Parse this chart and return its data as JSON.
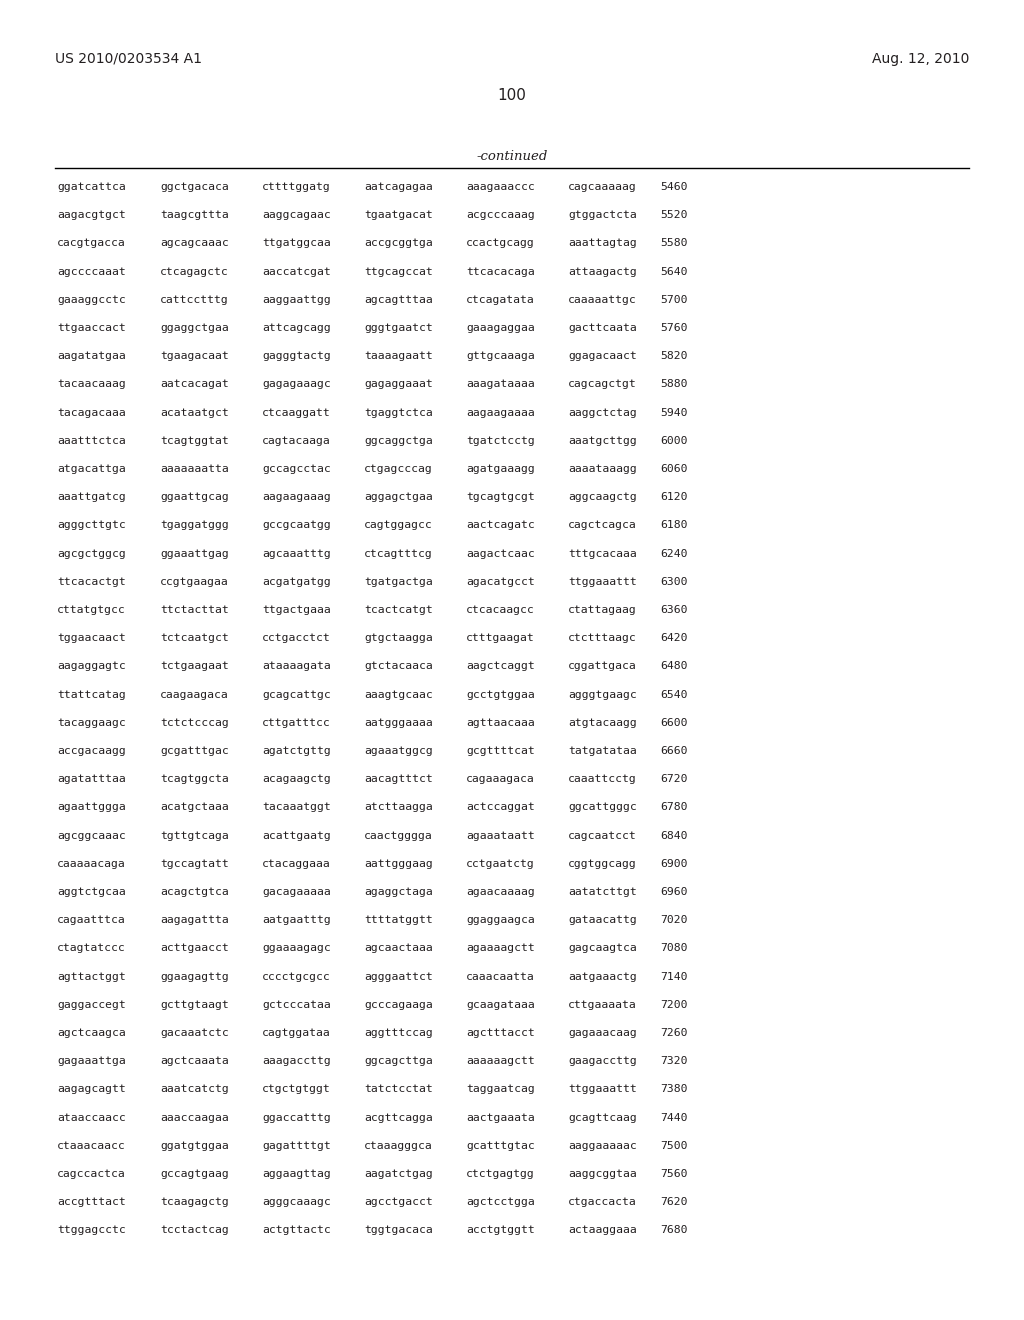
{
  "header_left": "US 2010/0203534 A1",
  "header_right": "Aug. 12, 2010",
  "page_number": "100",
  "continued_label": "-continued",
  "background_color": "#ffffff",
  "text_color": "#231f20",
  "sequence_lines": [
    [
      "ggatcattca",
      "ggctgacaca",
      "cttttggatg",
      "aatcagagaa",
      "aaagaaaccc",
      "cagcaaaaag",
      "5460"
    ],
    [
      "aagacgtgct",
      "taagcgttta",
      "aaggcagaac",
      "tgaatgacat",
      "acgcccaaag",
      "gtggactcta",
      "5520"
    ],
    [
      "cacgtgacca",
      "agcagcaaac",
      "ttgatggcaa",
      "accgcggtga",
      "ccactgcagg",
      "aaattagtag",
      "5580"
    ],
    [
      "agccccaaat",
      "ctcagagctc",
      "aaccatcgat",
      "ttgcagccat",
      "ttcacacaga",
      "attaagactg",
      "5640"
    ],
    [
      "gaaaggcctc",
      "cattcctttg",
      "aaggaattgg",
      "agcagtttaa",
      "ctcagatata",
      "caaaaattgc",
      "5700"
    ],
    [
      "ttgaaccact",
      "ggaggctgaa",
      "attcagcagg",
      "gggtgaatct",
      "gaaagaggaa",
      "gacttcaata",
      "5760"
    ],
    [
      "aagatatgaa",
      "tgaagacaat",
      "gagggtactg",
      "taaaagaatt",
      "gttgcaaaga",
      "ggagacaact",
      "5820"
    ],
    [
      "tacaacaaag",
      "aatcacagat",
      "gagagaaagc",
      "gagaggaaat",
      "aaagataaaa",
      "cagcagctgt",
      "5880"
    ],
    [
      "tacagacaaa",
      "acataatgct",
      "ctcaaggatt",
      "tgaggtctca",
      "aagaagaaaa",
      "aaggctctag",
      "5940"
    ],
    [
      "aaatttctca",
      "tcagtggtat",
      "cagtacaaga",
      "ggcaggctga",
      "tgatctcctg",
      "aaatgcttgg",
      "6000"
    ],
    [
      "atgacattga",
      "aaaaaaatta",
      "gccagcctac",
      "ctgagcccag",
      "agatgaaagg",
      "aaaataaagg",
      "6060"
    ],
    [
      "aaattgatcg",
      "ggaattgcag",
      "aagaagaaag",
      "aggagctgaa",
      "tgcagtgcgt",
      "aggcaagctg",
      "6120"
    ],
    [
      "agggcttgtc",
      "tgaggatggg",
      "gccgcaatgg",
      "cagtggagcc",
      "aactcagatc",
      "cagctcagca",
      "6180"
    ],
    [
      "agcgctggcg",
      "ggaaattgag",
      "agcaaatttg",
      "ctcagtttcg",
      "aagactcaac",
      "tttgcacaaa",
      "6240"
    ],
    [
      "ttcacactgt",
      "ccgtgaagaa",
      "acgatgatgg",
      "tgatgactga",
      "agacatgcct",
      "ttggaaattt",
      "6300"
    ],
    [
      "cttatgtgcc",
      "ttctacttat",
      "ttgactgaaa",
      "tcactcatgt",
      "ctcacaagcc",
      "ctattagaag",
      "6360"
    ],
    [
      "tggaacaact",
      "tctcaatgct",
      "cctgacctct",
      "gtgctaagga",
      "ctttgaagat",
      "ctctttaagc",
      "6420"
    ],
    [
      "aagaggagtc",
      "tctgaagaat",
      "ataaaagata",
      "gtctacaaca",
      "aagctcaggt",
      "cggattgaca",
      "6480"
    ],
    [
      "ttattcatag",
      "caagaagaca",
      "gcagcattgc",
      "aaagtgcaac",
      "gcctgtggaa",
      "agggtgaagc",
      "6540"
    ],
    [
      "tacaggaagc",
      "tctctcccag",
      "cttgatttcc",
      "aatgggaaaa",
      "agttaacaaa",
      "atgtacaagg",
      "6600"
    ],
    [
      "accgacaagg",
      "gcgatttgac",
      "agatctgttg",
      "agaaatggcg",
      "gcgttttcat",
      "tatgatataa",
      "6660"
    ],
    [
      "agatatttaa",
      "tcagtggcta",
      "acagaagctg",
      "aacagtttct",
      "cagaaagaca",
      "caaattcctg",
      "6720"
    ],
    [
      "agaattggga",
      "acatgctaaa",
      "tacaaatggt",
      "atcttaagga",
      "actccaggat",
      "ggcattgggc",
      "6780"
    ],
    [
      "agcggcaaac",
      "tgttgtcaga",
      "acattgaatg",
      "caactgggga",
      "agaaataatt",
      "cagcaatcct",
      "6840"
    ],
    [
      "caaaaacaga",
      "tgccagtatt",
      "ctacaggaaa",
      "aattgggaag",
      "cctgaatctg",
      "cggtggcagg",
      "6900"
    ],
    [
      "aggtctgcaa",
      "acagctgtca",
      "gacagaaaaa",
      "agaggctaga",
      "agaacaaaag",
      "aatatcttgt",
      "6960"
    ],
    [
      "cagaatttca",
      "aagagattta",
      "aatgaatttg",
      "ttttatggtt",
      "ggaggaagca",
      "gataacattg",
      "7020"
    ],
    [
      "ctagtatccc",
      "acttgaacct",
      "ggaaaagagc",
      "agcaactaaa",
      "agaaaagctt",
      "gagcaagtca",
      "7080"
    ],
    [
      "agttactggt",
      "ggaagagttg",
      "cccctgcgcc",
      "agggaattct",
      "caaacaatta",
      "aatgaaactg",
      "7140"
    ],
    [
      "gaggaccegt",
      "gcttgtaagt",
      "gctcccataa",
      "gcccagaaga",
      "gcaagataaa",
      "cttgaaaata",
      "7200"
    ],
    [
      "agctcaagca",
      "gacaaatctc",
      "cagtggataa",
      "aggtttccag",
      "agctttacct",
      "gagaaacaag",
      "7260"
    ],
    [
      "gagaaattga",
      "agctcaaata",
      "aaagaccttg",
      "ggcagcttga",
      "aaaaaagctt",
      "gaagaccttg",
      "7320"
    ],
    [
      "aagagcagtt",
      "aaatcatctg",
      "ctgctgtggt",
      "tatctcctat",
      "taggaatcag",
      "ttggaaattt",
      "7380"
    ],
    [
      "ataaccaacc",
      "aaaccaagaa",
      "ggaccatttg",
      "acgttcagga",
      "aactgaaata",
      "gcagttcaag",
      "7440"
    ],
    [
      "ctaaacaacc",
      "ggatgtggaa",
      "gagattttgt",
      "ctaaagggca",
      "gcatttgtac",
      "aaggaaaaac",
      "7500"
    ],
    [
      "cagccactca",
      "gccagtgaag",
      "aggaagttag",
      "aagatctgag",
      "ctctgagtgg",
      "aaggcggtaa",
      "7560"
    ],
    [
      "accgtttact",
      "tcaagagctg",
      "agggcaaagc",
      "agcctgacct",
      "agctcctgga",
      "ctgaccacta",
      "7620"
    ],
    [
      "ttggagcctc",
      "tcctactcag",
      "actgttactc",
      "tggtgacaca",
      "acctgtggtt",
      "actaaggaaa",
      "7680"
    ]
  ]
}
